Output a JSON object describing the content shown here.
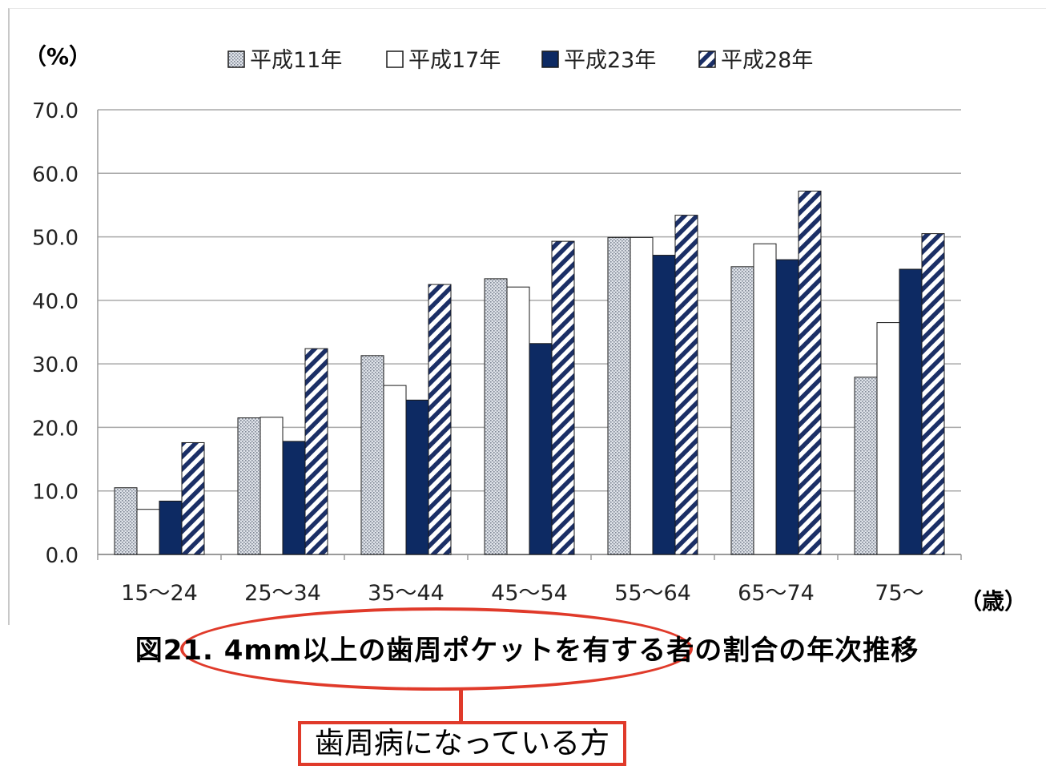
{
  "chart_data": {
    "type": "bar",
    "title": "図21. 4mm以上の歯周ポケットを有する者の割合の年次推移",
    "ylabel": "（%）",
    "xlabel": "（歳）",
    "ylim": [
      0,
      70
    ],
    "yticks": [
      "0.0",
      "10.0",
      "20.0",
      "30.0",
      "40.0",
      "50.0",
      "60.0",
      "70.0"
    ],
    "grid": true,
    "legend_position": "top",
    "categories": [
      "15〜24",
      "25〜34",
      "35〜44",
      "45〜54",
      "55〜64",
      "65〜74",
      "75〜"
    ],
    "series": [
      {
        "name": "平成11年",
        "pattern": "dotted",
        "color": "#c9ced6",
        "values": [
          10.5,
          21.5,
          31.3,
          43.4,
          49.9,
          45.3,
          27.9
        ]
      },
      {
        "name": "平成17年",
        "pattern": "solid-white",
        "color": "#ffffff",
        "values": [
          7.1,
          21.6,
          26.6,
          42.1,
          49.9,
          48.9,
          36.5
        ]
      },
      {
        "name": "平成23年",
        "pattern": "solid",
        "color": "#0d2a63",
        "values": [
          8.4,
          17.8,
          24.3,
          33.2,
          47.1,
          46.4,
          44.9
        ]
      },
      {
        "name": "平成28年",
        "pattern": "hatched",
        "color": "#1b2f66",
        "values": [
          17.6,
          32.4,
          42.5,
          49.3,
          53.4,
          57.2,
          50.5
        ]
      }
    ]
  },
  "annotation": {
    "callout_label": "歯周病になっている方",
    "accent_color": "#e03a2a"
  }
}
